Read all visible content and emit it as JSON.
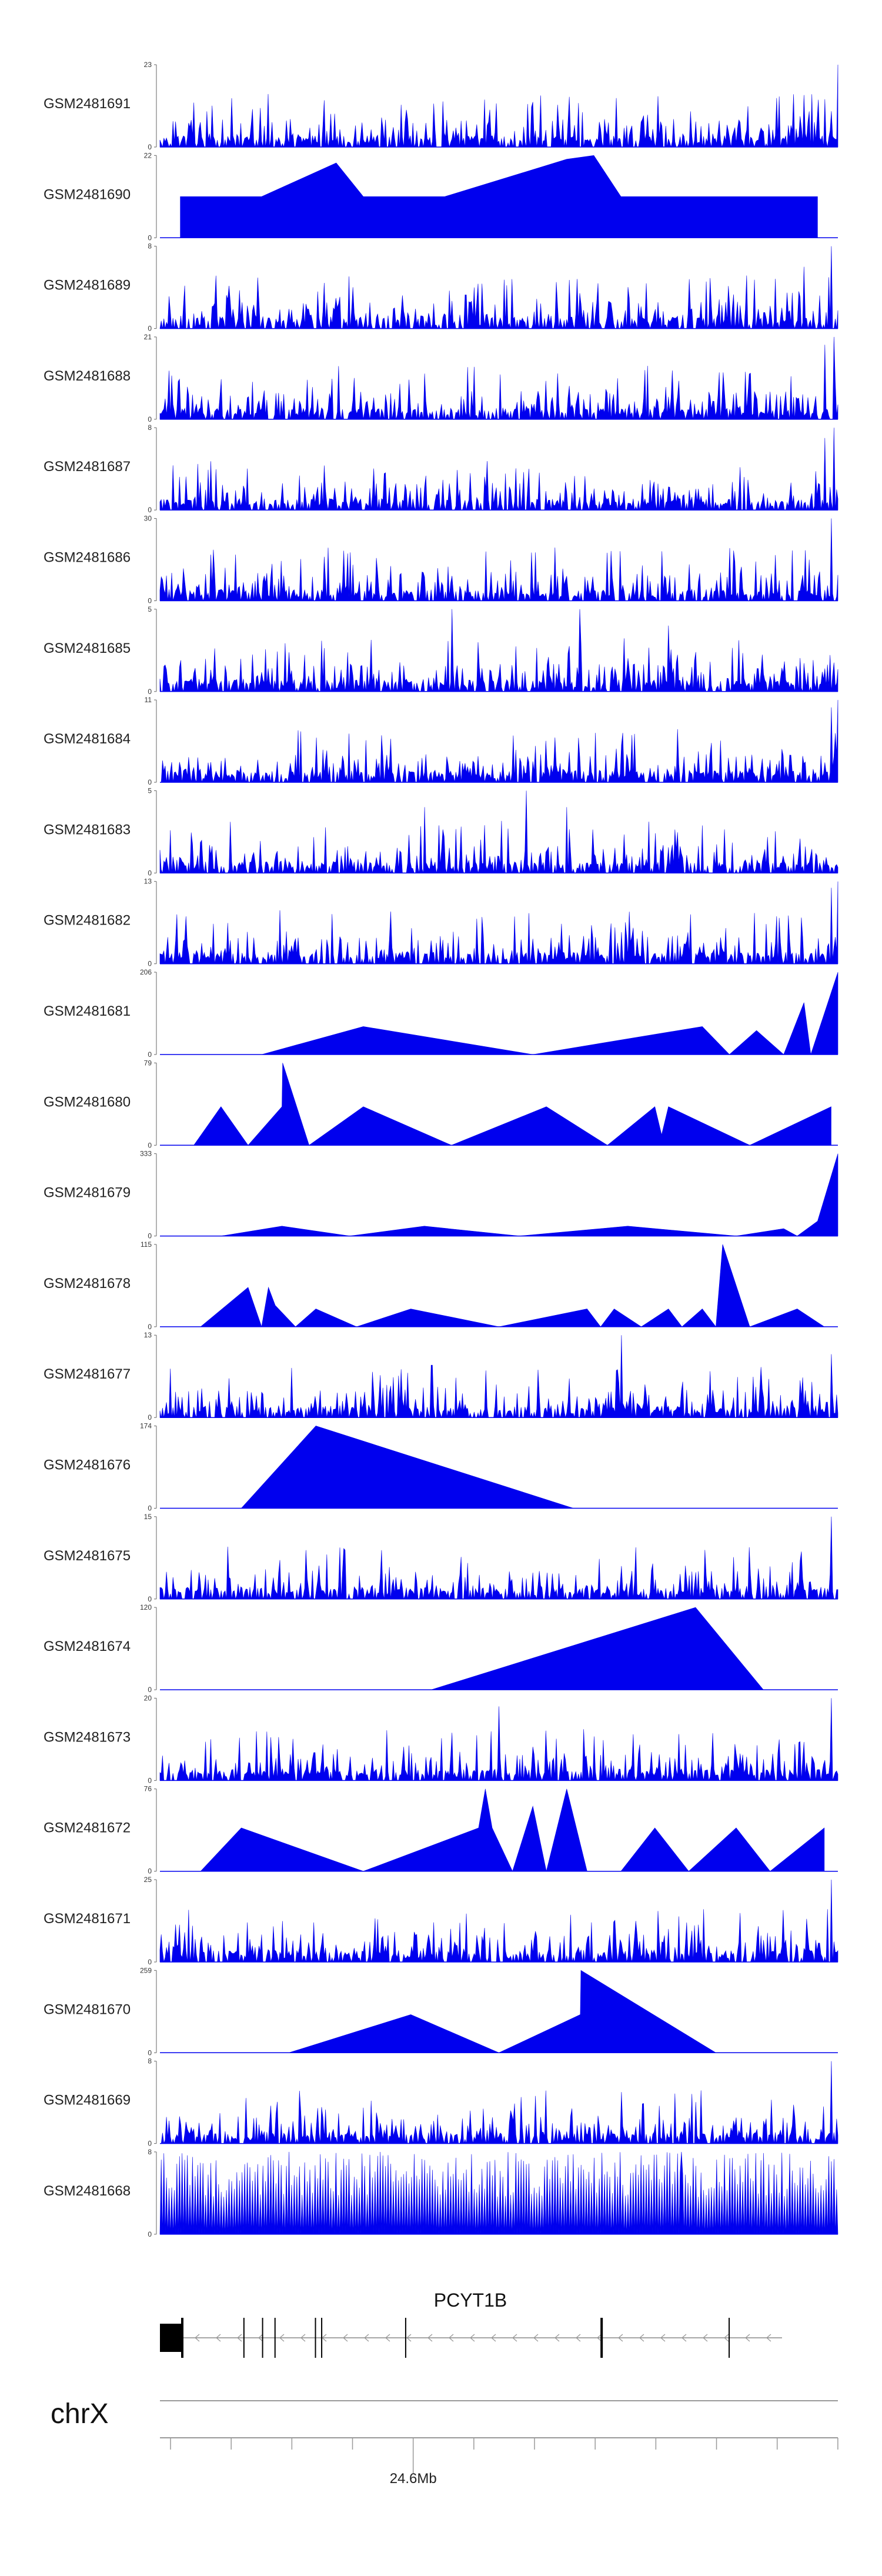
{
  "chart_data": {
    "type": "area",
    "title": "",
    "xlabel": "",
    "ylabel": "",
    "fill_color": "#0000EE",
    "tracks": [
      {
        "name": "GSM2481691",
        "ymax": "23",
        "ymin": "0",
        "pattern": "dense",
        "peaks": [
          [
            0.72,
            9
          ],
          [
            1.0,
            23
          ],
          [
            0.99,
            10
          ]
        ]
      },
      {
        "name": "GSM2481690",
        "ymax": "22",
        "ymin": "0",
        "pattern": "triangles",
        "peaks": [
          [
            0.03,
            11
          ],
          [
            0.15,
            11
          ],
          [
            0.26,
            20
          ],
          [
            0.3,
            11
          ],
          [
            0.42,
            11
          ],
          [
            0.6,
            21
          ],
          [
            0.64,
            22
          ],
          [
            0.68,
            11
          ],
          [
            0.8,
            11
          ],
          [
            0.91,
            11
          ],
          [
            0.97,
            11
          ]
        ]
      },
      {
        "name": "GSM2481689",
        "ymax": "8",
        "ymin": "0",
        "pattern": "dense",
        "peaks": [
          [
            0.95,
            6
          ],
          [
            0.99,
            8
          ]
        ]
      },
      {
        "name": "GSM2481688",
        "ymax": "21",
        "ymin": "0",
        "pattern": "dense",
        "peaks": [
          [
            0.98,
            19
          ],
          [
            0.995,
            21
          ]
        ]
      },
      {
        "name": "GSM2481687",
        "ymax": "8",
        "ymin": "0",
        "pattern": "dense",
        "peaks": [
          [
            0.98,
            7
          ],
          [
            0.995,
            8
          ]
        ]
      },
      {
        "name": "GSM2481686",
        "ymax": "30",
        "ymin": "0",
        "pattern": "dense",
        "peaks": [
          [
            0.99,
            30
          ]
        ]
      },
      {
        "name": "GSM2481685",
        "ymax": "5",
        "ymin": "0",
        "pattern": "dense",
        "peaks": [
          [
            0.43,
            5
          ],
          [
            0.62,
            5
          ],
          [
            0.75,
            4
          ]
        ]
      },
      {
        "name": "GSM2481684",
        "ymax": "11",
        "ymin": "0",
        "pattern": "dense",
        "peaks": [
          [
            0.68,
            5
          ],
          [
            0.99,
            10
          ],
          [
            1.0,
            11
          ]
        ]
      },
      {
        "name": "GSM2481683",
        "ymax": "5",
        "ymin": "0",
        "pattern": "dense",
        "peaks": [
          [
            0.39,
            4
          ],
          [
            0.54,
            5
          ],
          [
            0.6,
            4
          ]
        ]
      },
      {
        "name": "GSM2481682",
        "ymax": "13",
        "ymin": "0",
        "pattern": "dense",
        "peaks": [
          [
            0.68,
            5
          ],
          [
            0.99,
            12
          ],
          [
            1.0,
            13
          ]
        ]
      },
      {
        "name": "GSM2481681",
        "ymax": "206",
        "ymin": "0",
        "pattern": "triangles",
        "peaks": [
          [
            0.15,
            0
          ],
          [
            0.3,
            70
          ],
          [
            0.55,
            0
          ],
          [
            0.8,
            70
          ],
          [
            0.84,
            0
          ],
          [
            0.88,
            60
          ],
          [
            0.92,
            0
          ],
          [
            0.95,
            130
          ],
          [
            0.96,
            0
          ],
          [
            1.0,
            206
          ]
        ]
      },
      {
        "name": "GSM2481680",
        "ymax": "79",
        "ymin": "0",
        "pattern": "triangles",
        "peaks": [
          [
            0.05,
            0
          ],
          [
            0.09,
            37
          ],
          [
            0.13,
            0
          ],
          [
            0.18,
            37
          ],
          [
            0.181,
            79
          ],
          [
            0.22,
            0
          ],
          [
            0.3,
            37
          ],
          [
            0.43,
            0
          ],
          [
            0.57,
            37
          ],
          [
            0.66,
            0
          ],
          [
            0.73,
            37
          ],
          [
            0.74,
            10
          ],
          [
            0.75,
            37
          ],
          [
            0.87,
            0
          ],
          [
            0.99,
            37
          ]
        ]
      },
      {
        "name": "GSM2481679",
        "ymax": "333",
        "ymin": "0",
        "pattern": "triangles",
        "peaks": [
          [
            0.09,
            0
          ],
          [
            0.18,
            40
          ],
          [
            0.28,
            0
          ],
          [
            0.39,
            40
          ],
          [
            0.53,
            0
          ],
          [
            0.69,
            40
          ],
          [
            0.85,
            0
          ],
          [
            0.92,
            30
          ],
          [
            0.94,
            0
          ],
          [
            0.97,
            60
          ],
          [
            1.0,
            333
          ]
        ]
      },
      {
        "name": "GSM2481678",
        "ymax": "115",
        "ymin": "0",
        "pattern": "triangles",
        "peaks": [
          [
            0.06,
            0
          ],
          [
            0.13,
            55
          ],
          [
            0.15,
            0
          ],
          [
            0.16,
            55
          ],
          [
            0.17,
            30
          ],
          [
            0.2,
            0
          ],
          [
            0.23,
            25
          ],
          [
            0.29,
            0
          ],
          [
            0.37,
            25
          ],
          [
            0.5,
            0
          ],
          [
            0.63,
            25
          ],
          [
            0.65,
            0
          ],
          [
            0.67,
            25
          ],
          [
            0.71,
            0
          ],
          [
            0.75,
            25
          ],
          [
            0.77,
            0
          ],
          [
            0.8,
            25
          ],
          [
            0.82,
            0
          ],
          [
            0.83,
            115
          ],
          [
            0.87,
            0
          ],
          [
            0.94,
            25
          ],
          [
            0.98,
            0
          ]
        ]
      },
      {
        "name": "GSM2481677",
        "ymax": "13",
        "ymin": "0",
        "pattern": "dense",
        "peaks": [
          [
            0.68,
            13
          ],
          [
            0.34,
            5
          ],
          [
            0.99,
            10
          ]
        ]
      },
      {
        "name": "GSM2481676",
        "ymax": "174",
        "ymin": "0",
        "pattern": "triangles",
        "peaks": [
          [
            0.12,
            0
          ],
          [
            0.23,
            174
          ],
          [
            0.61,
            0
          ]
        ]
      },
      {
        "name": "GSM2481675",
        "ymax": "15",
        "ymin": "0",
        "pattern": "dense",
        "peaks": [
          [
            0.68,
            6
          ],
          [
            0.99,
            15
          ]
        ]
      },
      {
        "name": "GSM2481674",
        "ymax": "120",
        "ymin": "0",
        "pattern": "triangles",
        "peaks": [
          [
            0.4,
            0
          ],
          [
            0.79,
            120
          ],
          [
            0.89,
            0
          ]
        ]
      },
      {
        "name": "GSM2481673",
        "ymax": "20",
        "ymin": "0",
        "pattern": "dense",
        "peaks": [
          [
            0.5,
            18
          ],
          [
            0.99,
            20
          ]
        ]
      },
      {
        "name": "GSM2481672",
        "ymax": "76",
        "ymin": "0",
        "pattern": "triangles",
        "peaks": [
          [
            0.0,
            0
          ],
          [
            0.06,
            0
          ],
          [
            0.12,
            40
          ],
          [
            0.3,
            0
          ],
          [
            0.47,
            40
          ],
          [
            0.48,
            76
          ],
          [
            0.49,
            40
          ],
          [
            0.52,
            0
          ],
          [
            0.55,
            60
          ],
          [
            0.57,
            0
          ],
          [
            0.6,
            76
          ],
          [
            0.63,
            0
          ],
          [
            0.68,
            0
          ],
          [
            0.73,
            40
          ],
          [
            0.78,
            0
          ],
          [
            0.85,
            40
          ],
          [
            0.9,
            0
          ],
          [
            0.98,
            40
          ]
        ]
      },
      {
        "name": "GSM2481671",
        "ymax": "25",
        "ymin": "0",
        "pattern": "dense",
        "peaks": [
          [
            0.99,
            25
          ]
        ]
      },
      {
        "name": "GSM2481670",
        "ymax": "259",
        "ymin": "0",
        "pattern": "triangles",
        "peaks": [
          [
            0.19,
            0
          ],
          [
            0.37,
            120
          ],
          [
            0.5,
            0
          ],
          [
            0.62,
            120
          ],
          [
            0.621,
            259
          ],
          [
            0.82,
            0
          ]
        ]
      },
      {
        "name": "GSM2481669",
        "ymax": "8",
        "ymin": "0",
        "pattern": "dense",
        "peaks": [
          [
            0.68,
            5
          ],
          [
            0.99,
            8
          ]
        ]
      },
      {
        "name": "GSM2481668",
        "ymax": "8",
        "ymin": "0",
        "pattern": "comb",
        "peaks": [
          [
            0.19,
            8
          ],
          [
            0.77,
            8
          ]
        ]
      }
    ],
    "gene": {
      "name": "PCYT1B",
      "strand": "-",
      "exons": [
        0.0,
        0.035,
        0.135,
        0.165,
        0.185,
        0.25,
        0.26,
        0.395,
        0.71,
        0.915
      ]
    },
    "chromosome": "chrX",
    "position_label": "24.6Mb",
    "major_tick_fraction": 0.33
  }
}
